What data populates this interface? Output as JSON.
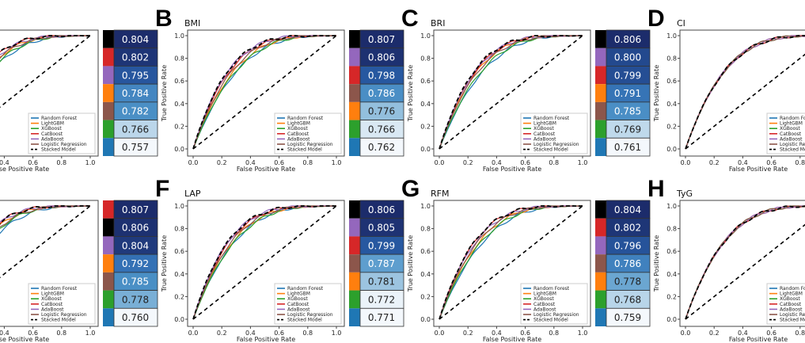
{
  "models": [
    {
      "name": "Random Forest",
      "color": "#1f77b4"
    },
    {
      "name": "LightGBM",
      "color": "#ff7f0e"
    },
    {
      "name": "XGBoost",
      "color": "#2ca02c"
    },
    {
      "name": "CatBoost",
      "color": "#d62728"
    },
    {
      "name": "AdaBoost",
      "color": "#9467bd"
    },
    {
      "name": "Logistic Regression",
      "color": "#8c564b"
    },
    {
      "name": "Stacked Model",
      "color": "#000000"
    }
  ],
  "chart_data": {
    "type": "line",
    "xlabel": "False Positive Rate",
    "ylabel": "True Positive Rate",
    "xlim": [
      0,
      1
    ],
    "ylim": [
      0,
      1
    ],
    "x_ticks": [
      "0.0",
      "0.2",
      "0.4",
      "0.6",
      "0.8",
      "1.0"
    ],
    "y_ticks": [
      "0.0",
      "0.2",
      "0.4",
      "0.6",
      "0.8",
      "1.0"
    ],
    "reference_line": "diagonal dashed",
    "legend_placement": "lower-right",
    "panels": [
      {
        "letter": "",
        "title": "",
        "results": [
          [
            "Stacked Model",
            0.804
          ],
          [
            "CatBoost",
            0.802
          ],
          [
            "AdaBoost",
            0.795
          ],
          [
            "LightGBM",
            0.784
          ],
          [
            "Logistic Regression",
            0.782
          ],
          [
            "XGBoost",
            0.766
          ],
          [
            "Random Forest",
            0.757
          ]
        ]
      },
      {
        "letter": "B",
        "title": "BMI",
        "results": [
          [
            "Stacked Model",
            0.807
          ],
          [
            "AdaBoost",
            0.806
          ],
          [
            "CatBoost",
            0.798
          ],
          [
            "Logistic Regression",
            0.786
          ],
          [
            "LightGBM",
            0.776
          ],
          [
            "XGBoost",
            0.766
          ],
          [
            "Random Forest",
            0.762
          ]
        ]
      },
      {
        "letter": "C",
        "title": "BRI",
        "results": [
          [
            "Stacked Model",
            0.806
          ],
          [
            "AdaBoost",
            0.8
          ],
          [
            "CatBoost",
            0.799
          ],
          [
            "LightGBM",
            0.791
          ],
          [
            "Logistic Regression",
            0.785
          ],
          [
            "XGBoost",
            0.769
          ],
          [
            "Random Forest",
            0.761
          ]
        ]
      },
      {
        "letter": "D",
        "title": "CI",
        "results": []
      },
      {
        "letter": "",
        "title": "",
        "results": [
          [
            "CatBoost",
            0.807
          ],
          [
            "Stacked Model",
            0.806
          ],
          [
            "AdaBoost",
            0.804
          ],
          [
            "LightGBM",
            0.792
          ],
          [
            "Logistic Regression",
            0.785
          ],
          [
            "XGBoost",
            0.778
          ],
          [
            "Random Forest",
            0.76
          ]
        ]
      },
      {
        "letter": "F",
        "title": "LAP",
        "results": [
          [
            "Stacked Model",
            0.806
          ],
          [
            "AdaBoost",
            0.805
          ],
          [
            "CatBoost",
            0.799
          ],
          [
            "Logistic Regression",
            0.787
          ],
          [
            "LightGBM",
            0.781
          ],
          [
            "XGBoost",
            0.772
          ],
          [
            "Random Forest",
            0.771
          ]
        ]
      },
      {
        "letter": "G",
        "title": "RFM",
        "results": [
          [
            "Stacked Model",
            0.804
          ],
          [
            "CatBoost",
            0.802
          ],
          [
            "AdaBoost",
            0.796
          ],
          [
            "Logistic Regression",
            0.786
          ],
          [
            "LightGBM",
            0.778
          ],
          [
            "XGBoost",
            0.768
          ],
          [
            "Random Forest",
            0.759
          ]
        ]
      },
      {
        "letter": "H",
        "title": "TyG",
        "results": []
      }
    ]
  }
}
